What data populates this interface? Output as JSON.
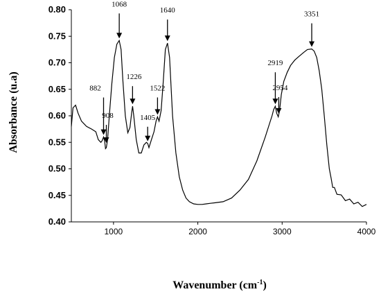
{
  "chart_data": {
    "type": "line",
    "xlabel": "Wavenumber (cm",
    "xlabel_sup": "-1",
    "xlabel_close": ")",
    "ylabel": "Absorbance (u.a)",
    "xlim": [
      500,
      4000
    ],
    "ylim": [
      0.4,
      0.8
    ],
    "x_ticks": [
      "1000",
      "2000",
      "3000",
      "4000"
    ],
    "y_ticks": [
      "0.40",
      "0.45",
      "0.50",
      "0.55",
      "0.60",
      "0.65",
      "0.70",
      "0.75",
      "0.80"
    ],
    "grid": false,
    "series": [
      {
        "color": "#000000",
        "x": [
          500,
          520,
          550,
          580,
          620,
          680,
          740,
          790,
          820,
          850,
          865,
          882,
          895,
          905,
          915,
          930,
          950,
          980,
          1010,
          1040,
          1068,
          1090,
          1110,
          1140,
          1170,
          1195,
          1215,
          1226,
          1240,
          1270,
          1300,
          1330,
          1360,
          1390,
          1405,
          1420,
          1450,
          1480,
          1505,
          1522,
          1540,
          1565,
          1590,
          1615,
          1640,
          1665,
          1700,
          1740,
          1780,
          1820,
          1860,
          1900,
          1950,
          2000,
          2050,
          2100,
          2150,
          2200,
          2300,
          2400,
          2500,
          2600,
          2700,
          2800,
          2850,
          2880,
          2900,
          2919,
          2935,
          2954,
          2970,
          2990,
          3020,
          3060,
          3100,
          3150,
          3200,
          3260,
          3300,
          3351,
          3380,
          3410,
          3440,
          3470,
          3500,
          3530,
          3560,
          3580,
          3600,
          3620,
          3650,
          3700,
          3750,
          3800,
          3850,
          3900,
          3950,
          4000
        ],
        "y": [
          0.58,
          0.615,
          0.62,
          0.605,
          0.59,
          0.58,
          0.575,
          0.57,
          0.555,
          0.55,
          0.553,
          0.56,
          0.552,
          0.538,
          0.54,
          0.555,
          0.6,
          0.66,
          0.71,
          0.735,
          0.742,
          0.725,
          0.67,
          0.6,
          0.568,
          0.578,
          0.605,
          0.618,
          0.6,
          0.555,
          0.53,
          0.53,
          0.545,
          0.55,
          0.548,
          0.54,
          0.555,
          0.57,
          0.59,
          0.598,
          0.59,
          0.61,
          0.665,
          0.725,
          0.737,
          0.71,
          0.6,
          0.53,
          0.485,
          0.46,
          0.445,
          0.438,
          0.434,
          0.433,
          0.433,
          0.434,
          0.435,
          0.436,
          0.438,
          0.445,
          0.46,
          0.48,
          0.515,
          0.56,
          0.585,
          0.6,
          0.612,
          0.618,
          0.605,
          0.598,
          0.61,
          0.64,
          0.665,
          0.682,
          0.695,
          0.705,
          0.712,
          0.72,
          0.725,
          0.726,
          0.722,
          0.71,
          0.685,
          0.65,
          0.6,
          0.545,
          0.5,
          0.48,
          0.468,
          0.462,
          0.455,
          0.448,
          0.443,
          0.44,
          0.437,
          0.434,
          0.432,
          0.43
        ]
      }
    ],
    "annotations": [
      {
        "label": "882",
        "x": 882,
        "y": 0.56
      },
      {
        "label": "908",
        "x": 915,
        "y": 0.545
      },
      {
        "label": "1068",
        "x": 1068,
        "y": 0.742
      },
      {
        "label": "1226",
        "x": 1226,
        "y": 0.618
      },
      {
        "label": "1405",
        "x": 1405,
        "y": 0.548
      },
      {
        "label": "1522",
        "x": 1522,
        "y": 0.598
      },
      {
        "label": "1640",
        "x": 1640,
        "y": 0.737
      },
      {
        "label": "2919",
        "x": 2919,
        "y": 0.618
      },
      {
        "label": "2954",
        "x": 2960,
        "y": 0.6
      },
      {
        "label": "3351",
        "x": 3351,
        "y": 0.726
      }
    ]
  }
}
